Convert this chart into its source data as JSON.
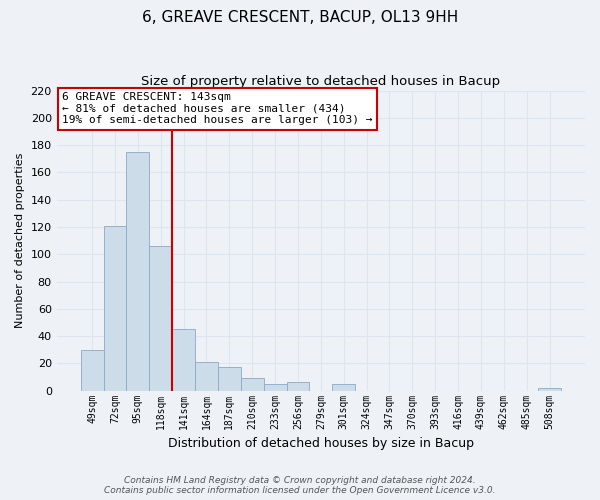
{
  "title": "6, GREAVE CRESCENT, BACUP, OL13 9HH",
  "subtitle": "Size of property relative to detached houses in Bacup",
  "xlabel": "Distribution of detached houses by size in Bacup",
  "ylabel": "Number of detached properties",
  "bar_labels": [
    "49sqm",
    "72sqm",
    "95sqm",
    "118sqm",
    "141sqm",
    "164sqm",
    "187sqm",
    "210sqm",
    "233sqm",
    "256sqm",
    "279sqm",
    "301sqm",
    "324sqm",
    "347sqm",
    "370sqm",
    "393sqm",
    "416sqm",
    "439sqm",
    "462sqm",
    "485sqm",
    "508sqm"
  ],
  "bar_values": [
    30,
    121,
    175,
    106,
    45,
    21,
    17,
    9,
    5,
    6,
    0,
    5,
    0,
    0,
    0,
    0,
    0,
    0,
    0,
    0,
    2
  ],
  "bar_color": "#ccdce8",
  "bar_edge_color": "#88aac8",
  "vline_color": "#cc0000",
  "ylim": [
    0,
    220
  ],
  "yticks": [
    0,
    20,
    40,
    60,
    80,
    100,
    120,
    140,
    160,
    180,
    200,
    220
  ],
  "annotation_title": "6 GREAVE CRESCENT: 143sqm",
  "annotation_line1": "← 81% of detached houses are smaller (434)",
  "annotation_line2": "19% of semi-detached houses are larger (103) →",
  "annotation_box_color": "#ffffff",
  "annotation_box_edge": "#cc0000",
  "footer_line1": "Contains HM Land Registry data © Crown copyright and database right 2024.",
  "footer_line2": "Contains public sector information licensed under the Open Government Licence v3.0.",
  "background_color": "#eef2f7",
  "grid_color": "#dde6f0",
  "title_fontsize": 11,
  "subtitle_fontsize": 9.5,
  "xlabel_fontsize": 9,
  "ylabel_fontsize": 8,
  "tick_fontsize": 8,
  "xtick_fontsize": 7,
  "footer_fontsize": 6.5,
  "annotation_fontsize": 8
}
